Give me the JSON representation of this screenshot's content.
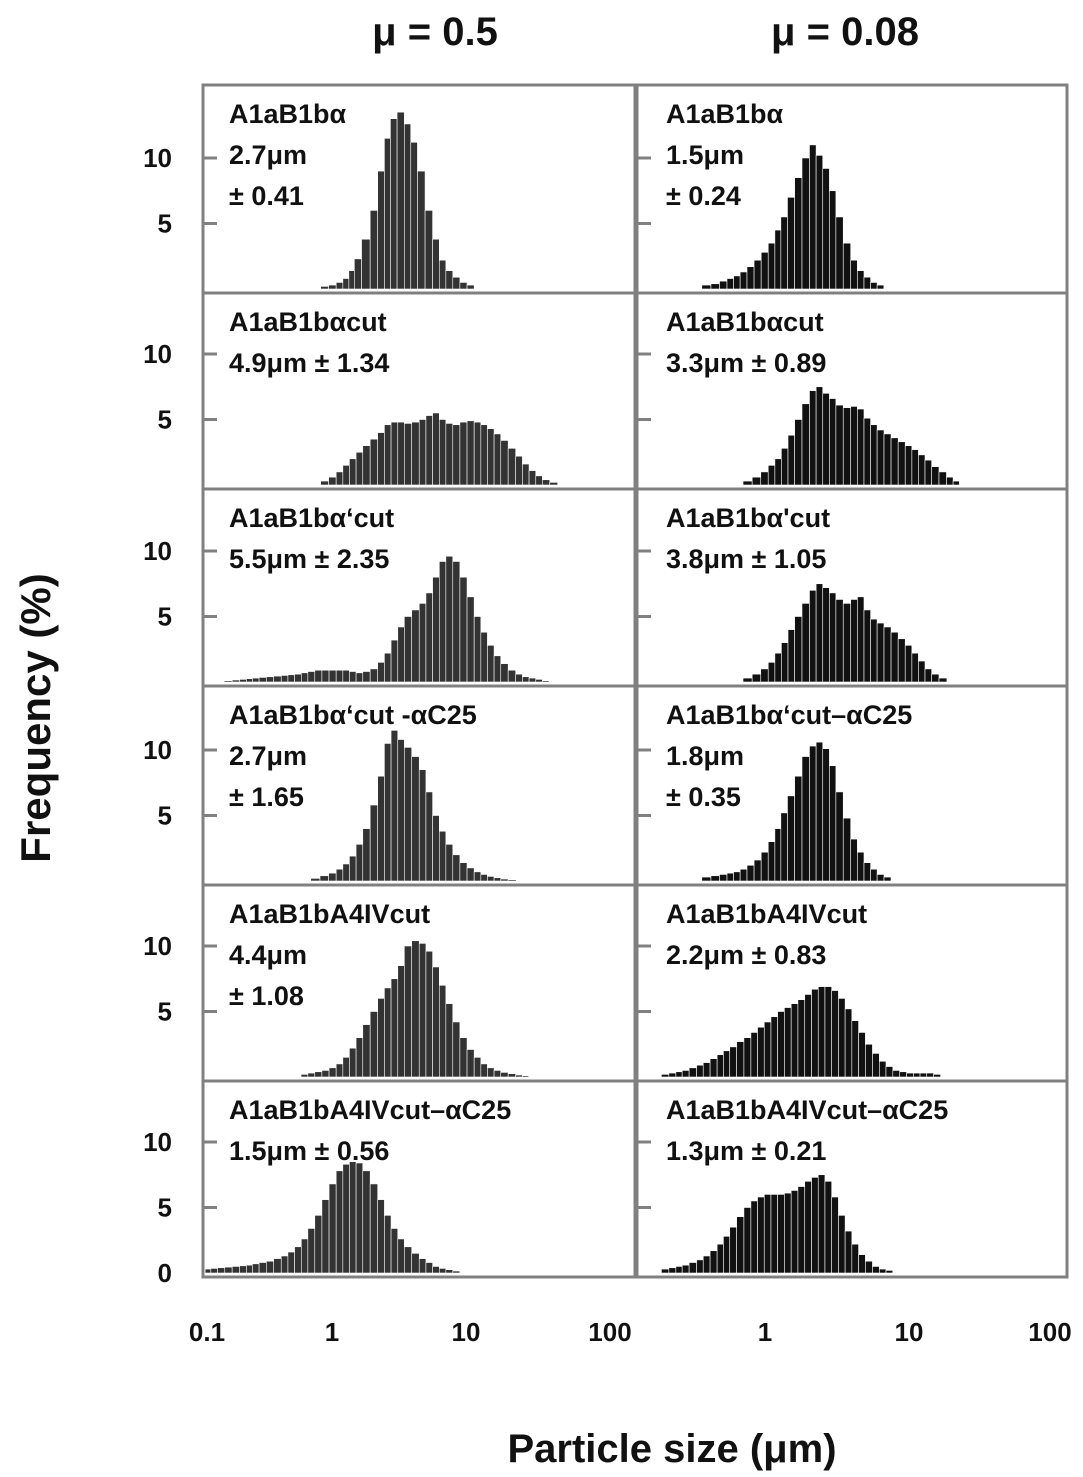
{
  "figure": {
    "column_titles": [
      "μ = 0.5",
      "μ = 0.08"
    ],
    "ylabel": "Frequency (%)",
    "xlabel": "Particle size (μm)",
    "x_ticks_left": [
      "0.1",
      "1",
      "10",
      "100"
    ],
    "x_ticks_right": [
      "1",
      "10",
      "100"
    ],
    "y_ticks": [
      "10",
      "5"
    ],
    "y_zero": "0",
    "bar_color_left": "#333333",
    "bar_color_right": "#111111",
    "frame_color": "#808080"
  },
  "chart_data": [
    {
      "type": "bar",
      "column": "μ = 0.5",
      "label_lines": [
        "A1aB1bα",
        "2.7μm",
        "± 0.41"
      ],
      "xlim": [
        0.1,
        100
      ],
      "ylim": [
        0,
        15
      ],
      "x_scale": "log",
      "x": [
        0.7,
        0.8,
        0.9,
        1.0,
        1.1,
        1.2,
        1.4,
        1.6,
        1.8,
        2.0,
        2.2,
        2.5,
        2.8,
        3.1,
        3.5,
        4.0,
        4.5,
        5.0,
        5.6,
        6.3,
        7.1,
        8.0
      ],
      "values": [
        0.2,
        0.3,
        0.5,
        0.8,
        1.4,
        2.3,
        3.8,
        6.0,
        9.0,
        11.5,
        13.0,
        13.5,
        12.6,
        11.2,
        9.0,
        6.0,
        3.8,
        2.2,
        1.4,
        0.9,
        0.5,
        0.3
      ]
    },
    {
      "type": "bar",
      "column": "μ = 0.08",
      "label_lines": [
        "A1aB1bα",
        "1.5μm",
        "± 0.24"
      ],
      "xlim": [
        0.1,
        100
      ],
      "ylim": [
        0,
        15
      ],
      "x_scale": "log",
      "x": [
        0.3,
        0.35,
        0.4,
        0.45,
        0.5,
        0.56,
        0.63,
        0.71,
        0.8,
        0.9,
        1.0,
        1.1,
        1.25,
        1.4,
        1.6,
        1.8,
        2.0,
        2.25,
        2.5,
        2.8,
        3.2,
        3.6,
        4.0,
        4.5,
        5.0,
        5.6
      ],
      "values": [
        0.3,
        0.4,
        0.6,
        0.8,
        1.0,
        1.3,
        1.7,
        2.2,
        2.8,
        3.5,
        4.5,
        5.5,
        7.0,
        8.5,
        10.0,
        11.0,
        10.2,
        9.2,
        7.5,
        5.5,
        3.5,
        2.2,
        1.4,
        0.9,
        0.5,
        0.3
      ]
    },
    {
      "type": "bar",
      "column": "μ = 0.5",
      "label_lines": [
        "A1aB1bαcut",
        "4.9μm ± 1.34"
      ],
      "xlim": [
        0.1,
        100
      ],
      "ylim": [
        0,
        15
      ],
      "x_scale": "log",
      "x": [
        0.7,
        0.8,
        0.9,
        1.0,
        1.12,
        1.25,
        1.4,
        1.6,
        1.8,
        2.0,
        2.25,
        2.5,
        2.8,
        3.2,
        3.6,
        4.0,
        4.5,
        5.0,
        5.6,
        6.3,
        7.1,
        8.0,
        9.0,
        10.0,
        11.2,
        12.5,
        14.0,
        16.0,
        18.0,
        20.0,
        22.5,
        25.0,
        28.0,
        32.0
      ],
      "values": [
        0.3,
        0.6,
        1.0,
        1.5,
        2.0,
        2.5,
        3.0,
        3.5,
        4.0,
        4.6,
        4.8,
        4.8,
        4.7,
        4.8,
        5.0,
        5.3,
        5.5,
        5.0,
        4.7,
        4.6,
        4.8,
        4.9,
        4.8,
        4.6,
        4.3,
        3.9,
        3.4,
        2.8,
        2.2,
        1.6,
        1.1,
        0.7,
        0.4,
        0.2
      ]
    },
    {
      "type": "bar",
      "column": "μ = 0.08",
      "label_lines": [
        "A1aB1bαcut",
        "3.3μm ± 0.89"
      ],
      "xlim": [
        0.1,
        100
      ],
      "ylim": [
        0,
        15
      ],
      "x_scale": "log",
      "x": [
        0.6,
        0.7,
        0.8,
        0.9,
        1.0,
        1.12,
        1.25,
        1.4,
        1.6,
        1.8,
        2.0,
        2.25,
        2.5,
        2.8,
        3.2,
        3.6,
        4.0,
        4.5,
        5.0,
        5.6,
        6.3,
        7.1,
        8.0,
        9.0,
        10.0,
        11.2,
        12.5,
        14.0,
        16.0,
        18.0,
        20.0
      ],
      "values": [
        0.3,
        0.6,
        1.0,
        1.5,
        2.0,
        2.8,
        3.8,
        5.0,
        6.2,
        7.2,
        7.5,
        7.0,
        6.6,
        6.1,
        5.9,
        6.0,
        5.8,
        5.1,
        4.6,
        4.2,
        3.9,
        3.6,
        3.3,
        3.0,
        2.7,
        2.3,
        1.9,
        1.4,
        1.0,
        0.6,
        0.3
      ]
    },
    {
      "type": "bar",
      "column": "μ = 0.5",
      "label_lines": [
        "A1aB1bα‘cut",
        "5.5μm ± 2.35"
      ],
      "xlim": [
        0.1,
        100
      ],
      "ylim": [
        0,
        15
      ],
      "x_scale": "log",
      "x": [
        0.14,
        0.16,
        0.18,
        0.2,
        0.22,
        0.25,
        0.28,
        0.32,
        0.36,
        0.4,
        0.45,
        0.5,
        0.56,
        0.63,
        0.71,
        0.8,
        0.9,
        1.0,
        1.12,
        1.25,
        1.4,
        1.6,
        1.8,
        2.0,
        2.25,
        2.5,
        2.8,
        3.2,
        3.6,
        4.0,
        4.5,
        5.0,
        5.6,
        6.3,
        7.1,
        8.0,
        9.0,
        10.0,
        11.2,
        12.5,
        14.0,
        16.0,
        18.0,
        20.0,
        22.5,
        25.0,
        28.0
      ],
      "values": [
        0.1,
        0.15,
        0.2,
        0.25,
        0.3,
        0.35,
        0.4,
        0.45,
        0.5,
        0.55,
        0.6,
        0.7,
        0.8,
        0.9,
        0.9,
        0.9,
        0.9,
        0.9,
        0.8,
        0.7,
        0.8,
        1.0,
        1.5,
        2.2,
        3.2,
        4.2,
        5.0,
        5.5,
        6.0,
        6.8,
        8.0,
        9.2,
        9.6,
        9.2,
        8.0,
        6.5,
        5.0,
        3.8,
        2.8,
        2.0,
        1.4,
        0.9,
        0.6,
        0.4,
        0.3,
        0.2,
        0.1
      ]
    },
    {
      "type": "bar",
      "column": "μ = 0.08",
      "label_lines": [
        "A1aB1bα'cut",
        "3.8μm ± 1.05"
      ],
      "xlim": [
        0.1,
        100
      ],
      "ylim": [
        0,
        15
      ],
      "x_scale": "log",
      "x": [
        0.6,
        0.7,
        0.8,
        0.9,
        1.0,
        1.12,
        1.25,
        1.4,
        1.6,
        1.8,
        2.0,
        2.25,
        2.5,
        2.8,
        3.2,
        3.6,
        4.0,
        4.5,
        5.0,
        5.6,
        6.3,
        7.1,
        8.0,
        9.0,
        10.0,
        11.2,
        12.5,
        14.0,
        16.0
      ],
      "values": [
        0.3,
        0.6,
        1.0,
        1.5,
        2.2,
        3.0,
        4.0,
        5.0,
        6.0,
        7.0,
        7.5,
        7.2,
        6.8,
        6.3,
        6.0,
        6.3,
        6.5,
        5.5,
        4.8,
        4.5,
        4.2,
        3.8,
        3.3,
        2.8,
        2.2,
        1.6,
        1.0,
        0.6,
        0.3
      ]
    },
    {
      "type": "bar",
      "column": "μ = 0.5",
      "label_lines": [
        "A1aB1bα‘cut -αC25",
        " 2.7μm",
        "± 1.65"
      ],
      "xlim": [
        0.1,
        100
      ],
      "ylim": [
        0,
        15
      ],
      "x_scale": "log",
      "x": [
        0.6,
        0.7,
        0.8,
        0.9,
        1.0,
        1.12,
        1.25,
        1.4,
        1.6,
        1.8,
        2.0,
        2.25,
        2.5,
        2.8,
        3.2,
        3.6,
        4.0,
        4.5,
        5.0,
        5.6,
        6.3,
        7.1,
        8.0,
        9.0,
        10.0,
        11.2,
        12.5,
        14.0,
        16.0
      ],
      "values": [
        0.2,
        0.4,
        0.6,
        0.9,
        1.3,
        1.9,
        2.8,
        4.0,
        5.8,
        8.0,
        10.5,
        11.5,
        10.8,
        10.2,
        9.5,
        8.5,
        6.8,
        5.0,
        3.8,
        2.8,
        2.0,
        1.4,
        1.0,
        0.7,
        0.5,
        0.35,
        0.25,
        0.15,
        0.1
      ]
    },
    {
      "type": "bar",
      "column": "μ = 0.08",
      "label_lines": [
        "A1aB1bα‘cut–αC25",
        "1.8μm",
        "± 0.35"
      ],
      "xlim": [
        0.1,
        100
      ],
      "ylim": [
        0,
        15
      ],
      "x_scale": "log",
      "x": [
        0.3,
        0.35,
        0.4,
        0.45,
        0.5,
        0.56,
        0.63,
        0.71,
        0.8,
        0.9,
        1.0,
        1.1,
        1.25,
        1.4,
        1.6,
        1.8,
        2.0,
        2.25,
        2.5,
        2.8,
        3.2,
        3.6,
        4.0,
        4.5,
        5.0,
        5.6,
        6.3
      ],
      "values": [
        0.3,
        0.4,
        0.5,
        0.6,
        0.7,
        0.9,
        1.2,
        1.6,
        2.2,
        3.0,
        4.0,
        5.2,
        6.5,
        8.0,
        9.5,
        10.3,
        10.6,
        10.1,
        8.8,
        6.8,
        4.8,
        3.2,
        2.2,
        1.4,
        0.9,
        0.5,
        0.3
      ]
    },
    {
      "type": "bar",
      "column": "μ = 0.5",
      "label_lines": [
        "A1aB1bA4IVcut",
        "4.4μm",
        "± 1.08"
      ],
      "xlim": [
        0.1,
        100
      ],
      "ylim": [
        0,
        15
      ],
      "x_scale": "log",
      "x": [
        0.5,
        0.56,
        0.63,
        0.71,
        0.8,
        0.9,
        1.0,
        1.12,
        1.25,
        1.4,
        1.6,
        1.8,
        2.0,
        2.25,
        2.5,
        2.8,
        3.2,
        3.6,
        4.0,
        4.5,
        5.0,
        5.6,
        6.3,
        7.1,
        8.0,
        9.0,
        10.0,
        11.2,
        12.5,
        14.0,
        16.0,
        18.0,
        20.0
      ],
      "values": [
        0.2,
        0.3,
        0.4,
        0.5,
        0.7,
        1.0,
        1.5,
        2.2,
        3.0,
        4.0,
        5.0,
        6.0,
        6.8,
        7.5,
        8.5,
        10.0,
        10.4,
        10.2,
        9.6,
        8.4,
        7.0,
        5.6,
        4.2,
        3.0,
        2.1,
        1.5,
        1.0,
        0.7,
        0.5,
        0.35,
        0.25,
        0.15,
        0.1
      ]
    },
    {
      "type": "bar",
      "column": "μ = 0.08",
      "label_lines": [
        "A1aB1bA4IVcut",
        "2.2μm ± 0.83"
      ],
      "xlim": [
        0.1,
        100
      ],
      "ylim": [
        0,
        15
      ],
      "x_scale": "log",
      "x": [
        0.15,
        0.17,
        0.19,
        0.21,
        0.24,
        0.27,
        0.3,
        0.34,
        0.38,
        0.42,
        0.47,
        0.53,
        0.6,
        0.67,
        0.75,
        0.84,
        0.94,
        1.05,
        1.18,
        1.32,
        1.48,
        1.66,
        1.86,
        2.08,
        2.33,
        2.61,
        2.92,
        3.27,
        3.66,
        4.1,
        4.6,
        5.2,
        5.8,
        6.5,
        7.3,
        8.2,
        9.2,
        10.3,
        11.5,
        12.9,
        14.5
      ],
      "values": [
        0.2,
        0.3,
        0.4,
        0.5,
        0.7,
        0.9,
        1.1,
        1.4,
        1.7,
        2.0,
        2.3,
        2.7,
        3.0,
        3.4,
        3.8,
        4.2,
        4.6,
        5.0,
        5.3,
        5.6,
        5.9,
        6.3,
        6.7,
        6.9,
        6.9,
        6.6,
        6.0,
        5.2,
        4.3,
        3.4,
        2.5,
        1.8,
        1.2,
        0.8,
        0.5,
        0.4,
        0.3,
        0.3,
        0.3,
        0.3,
        0.2
      ]
    },
    {
      "type": "bar",
      "column": "μ = 0.5",
      "label_lines": [
        "A1aB1bA4IVcut–αC25",
        "1.5μm ± 0.56"
      ],
      "xlim": [
        0.1,
        100
      ],
      "ylim": [
        0,
        15
      ],
      "x_scale": "log",
      "x": [
        0.1,
        0.11,
        0.125,
        0.14,
        0.16,
        0.18,
        0.2,
        0.22,
        0.25,
        0.28,
        0.32,
        0.36,
        0.4,
        0.45,
        0.5,
        0.56,
        0.63,
        0.71,
        0.8,
        0.9,
        1.0,
        1.12,
        1.25,
        1.4,
        1.6,
        1.8,
        2.0,
        2.25,
        2.5,
        2.8,
        3.2,
        3.6,
        4.0,
        4.5,
        5.0,
        5.6,
        6.3
      ],
      "values": [
        0.3,
        0.35,
        0.4,
        0.45,
        0.5,
        0.55,
        0.6,
        0.7,
        0.8,
        0.9,
        1.1,
        1.3,
        1.6,
        2.0,
        2.6,
        3.4,
        4.4,
        5.6,
        6.8,
        7.8,
        8.3,
        8.5,
        8.4,
        7.8,
        6.8,
        5.6,
        4.4,
        3.4,
        2.6,
        2.0,
        1.5,
        1.1,
        0.8,
        0.5,
        0.35,
        0.25,
        0.15
      ]
    },
    {
      "type": "bar",
      "column": "μ = 0.08",
      "label_lines": [
        "A1aB1bA4IVcut–αC25",
        "1.3μm ± 0.21"
      ],
      "xlim": [
        0.1,
        100
      ],
      "ylim": [
        0,
        15
      ],
      "x_scale": "log",
      "x": [
        0.15,
        0.17,
        0.19,
        0.21,
        0.24,
        0.27,
        0.3,
        0.34,
        0.38,
        0.42,
        0.47,
        0.53,
        0.6,
        0.67,
        0.75,
        0.84,
        0.94,
        1.05,
        1.18,
        1.32,
        1.48,
        1.66,
        1.86,
        2.08,
        2.33,
        2.61,
        2.92,
        3.27,
        3.66,
        4.1,
        4.6,
        5.2,
        5.8,
        6.5
      ],
      "values": [
        0.3,
        0.4,
        0.5,
        0.6,
        0.8,
        1.0,
        1.3,
        1.7,
        2.2,
        2.8,
        3.5,
        4.3,
        5.0,
        5.5,
        5.8,
        6.0,
        6.0,
        6.0,
        6.1,
        6.3,
        6.6,
        7.0,
        7.3,
        7.5,
        7.0,
        5.8,
        4.4,
        3.2,
        2.2,
        1.4,
        0.9,
        0.5,
        0.3,
        0.2
      ]
    }
  ]
}
